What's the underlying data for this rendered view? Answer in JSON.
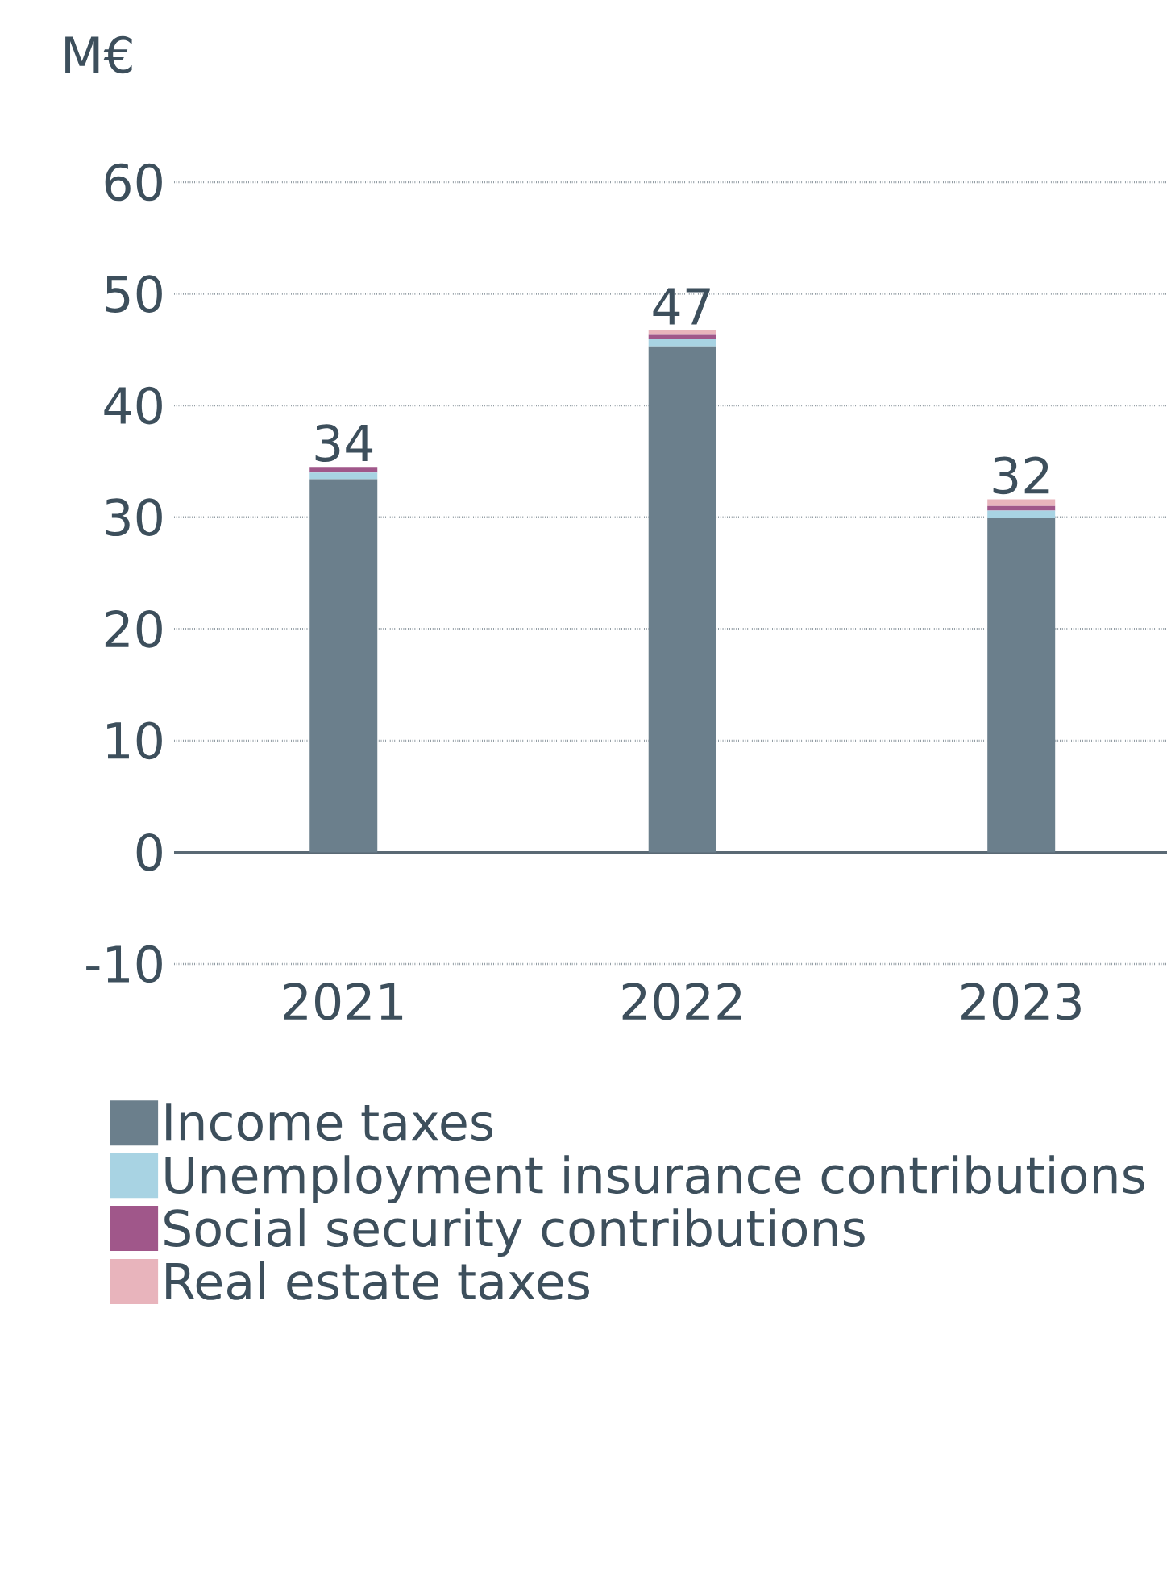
{
  "chart_data": {
    "type": "bar",
    "stacked": true,
    "ylabel": "M€",
    "categories": [
      "2021",
      "2022",
      "2023"
    ],
    "series": [
      {
        "name": "Income taxes",
        "color": "#6b7f8c",
        "values": [
          33.4,
          45.3,
          29.9
        ]
      },
      {
        "name": "Unemployment insurance contributions",
        "color": "#a8d3e3",
        "values": [
          0.6,
          0.7,
          0.7
        ]
      },
      {
        "name": "Social security contributions",
        "color": "#a0578a",
        "values": [
          0.5,
          0.4,
          0.4
        ]
      },
      {
        "name": "Real estate taxes",
        "color": "#e8b4bc",
        "values": [
          0,
          0.4,
          0.6
        ]
      }
    ],
    "totals": [
      "34",
      "47",
      "32"
    ],
    "ylim": [
      -10,
      60
    ],
    "yticks": [
      -10,
      0,
      10,
      20,
      30,
      40,
      50,
      60
    ],
    "grid": "y",
    "legend": "bottom"
  }
}
